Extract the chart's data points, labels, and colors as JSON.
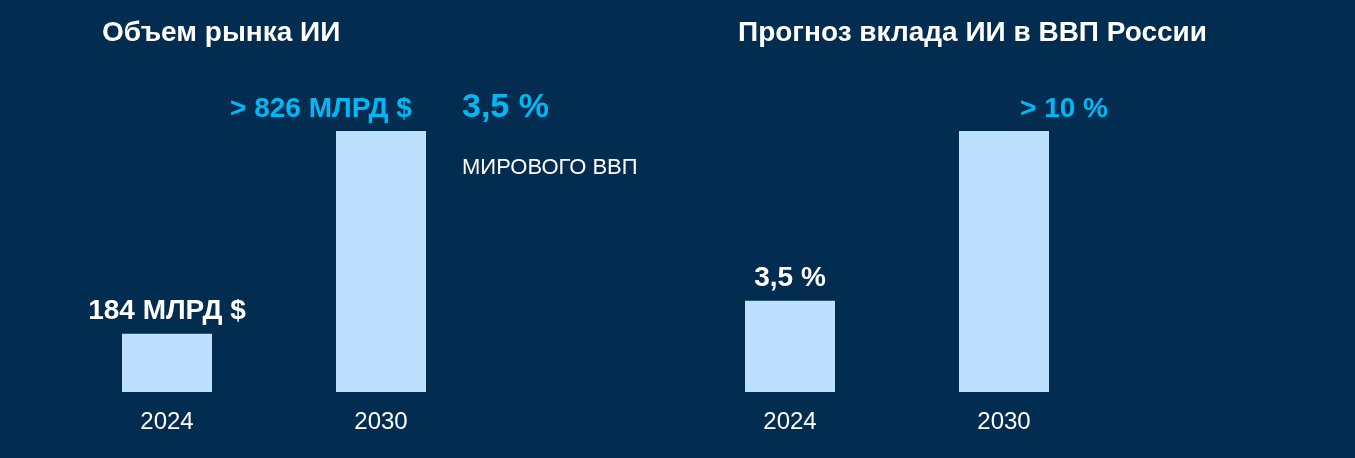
{
  "chart_data": [
    {
      "type": "bar",
      "title": "Объем рынка ИИ",
      "categories": [
        "2024",
        "2030"
      ],
      "values": [
        184,
        826
      ],
      "value_labels": [
        "184 МЛРД $",
        "> 826 МЛРД $"
      ],
      "color": "#bde0fe",
      "annotations": [
        "3,5 %",
        "МИРОВОГО ВВП"
      ]
    },
    {
      "type": "bar",
      "title": "Прогноз вклада ИИ в ВВП России",
      "categories": [
        "2024",
        "2030"
      ],
      "values": [
        3.5,
        10
      ],
      "value_labels": [
        "3,5 %",
        "> 10 %"
      ],
      "color": "#bde0fe"
    }
  ]
}
